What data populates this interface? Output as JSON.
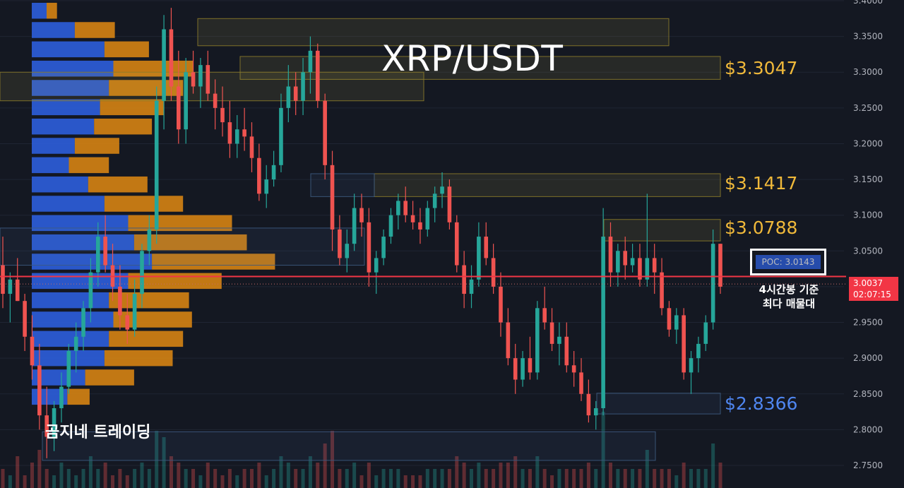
{
  "title": "XRP/USDT",
  "brand": "곰지네 트레이딩",
  "levels": {
    "l1": "$3.3047",
    "l2": "$3.1417",
    "l3": "$3.0788",
    "l4": "$2.8366"
  },
  "poc": {
    "label": "POC: 3.0143",
    "note_line1": "4시간봉 기준",
    "note_line2": "최다 매물대"
  },
  "price_tag": {
    "price": "3.0037",
    "countdown": "02:07:15"
  },
  "colors": {
    "background": "#141822",
    "up": "#26a69a",
    "down": "#ef5350",
    "gold": "#f0b93a",
    "blue": "#4f86f0",
    "profile_buy": "#2e63e6",
    "profile_sell": "#e08a12",
    "current_price_line": "#f23645"
  },
  "chart_data": {
    "type": "candlestick",
    "symbol": "XRP/USDT",
    "timeframe": "4h",
    "ylim": [
      2.73,
      3.4
    ],
    "y_ticks": [
      "3.4000",
      "3.3500",
      "3.3000",
      "3.2500",
      "3.2000",
      "3.1500",
      "3.1000",
      "3.0500",
      "3.0000",
      "2.9500",
      "2.9000",
      "2.8500",
      "2.8000",
      "2.7500"
    ],
    "current_price": 3.0037,
    "poc": 3.0143,
    "candles": [
      [
        3.03,
        3.07,
        2.97,
        2.99
      ],
      [
        2.99,
        3.02,
        2.95,
        3.01
      ],
      [
        3.01,
        3.04,
        2.98,
        2.98
      ],
      [
        2.98,
        2.99,
        2.91,
        2.93
      ],
      [
        2.93,
        2.96,
        2.87,
        2.89
      ],
      [
        2.89,
        2.92,
        2.8,
        2.82
      ],
      [
        2.82,
        2.86,
        2.76,
        2.79
      ],
      [
        2.79,
        2.84,
        2.77,
        2.83
      ],
      [
        2.83,
        2.88,
        2.81,
        2.86
      ],
      [
        2.86,
        2.92,
        2.85,
        2.91
      ],
      [
        2.91,
        2.95,
        2.88,
        2.93
      ],
      [
        2.93,
        2.98,
        2.91,
        2.97
      ],
      [
        2.97,
        3.04,
        2.95,
        3.02
      ],
      [
        3.02,
        3.09,
        3.0,
        3.07
      ],
      [
        3.07,
        3.1,
        3.02,
        3.03
      ],
      [
        3.03,
        3.06,
        2.98,
        3.0
      ],
      [
        3.0,
        3.03,
        2.94,
        2.96
      ],
      [
        2.96,
        2.99,
        2.92,
        2.94
      ],
      [
        2.94,
        3.01,
        2.93,
        2.99
      ],
      [
        2.99,
        3.06,
        2.97,
        3.05
      ],
      [
        3.05,
        3.1,
        3.03,
        3.08
      ],
      [
        3.08,
        3.28,
        3.06,
        3.26
      ],
      [
        3.26,
        3.38,
        3.22,
        3.36
      ],
      [
        3.36,
        3.39,
        3.26,
        3.28
      ],
      [
        3.28,
        3.33,
        3.2,
        3.22
      ],
      [
        3.22,
        3.32,
        3.2,
        3.3
      ],
      [
        3.3,
        3.33,
        3.27,
        3.28
      ],
      [
        3.28,
        3.32,
        3.25,
        3.31
      ],
      [
        3.31,
        3.33,
        3.26,
        3.27
      ],
      [
        3.27,
        3.29,
        3.22,
        3.25
      ],
      [
        3.25,
        3.28,
        3.21,
        3.23
      ],
      [
        3.23,
        3.26,
        3.18,
        3.2
      ],
      [
        3.2,
        3.24,
        3.18,
        3.22
      ],
      [
        3.22,
        3.25,
        3.19,
        3.21
      ],
      [
        3.21,
        3.23,
        3.16,
        3.18
      ],
      [
        3.18,
        3.2,
        3.12,
        3.13
      ],
      [
        3.13,
        3.17,
        3.11,
        3.15
      ],
      [
        3.15,
        3.19,
        3.14,
        3.17
      ],
      [
        3.17,
        3.27,
        3.16,
        3.25
      ],
      [
        3.25,
        3.31,
        3.23,
        3.28
      ],
      [
        3.28,
        3.3,
        3.24,
        3.26
      ],
      [
        3.26,
        3.32,
        3.24,
        3.3
      ],
      [
        3.3,
        3.35,
        3.27,
        3.33
      ],
      [
        3.33,
        3.34,
        3.25,
        3.26
      ],
      [
        3.26,
        3.27,
        3.15,
        3.17
      ],
      [
        3.17,
        3.19,
        3.05,
        3.08
      ],
      [
        3.08,
        3.1,
        3.03,
        3.04
      ],
      [
        3.04,
        3.08,
        3.02,
        3.06
      ],
      [
        3.06,
        3.13,
        3.05,
        3.11
      ],
      [
        3.11,
        3.13,
        3.07,
        3.09
      ],
      [
        3.09,
        3.11,
        3.0,
        3.02
      ],
      [
        3.02,
        3.05,
        2.99,
        3.04
      ],
      [
        3.04,
        3.08,
        3.03,
        3.07
      ],
      [
        3.07,
        3.11,
        3.06,
        3.1
      ],
      [
        3.1,
        3.13,
        3.08,
        3.12
      ],
      [
        3.12,
        3.14,
        3.09,
        3.1
      ],
      [
        3.1,
        3.12,
        3.08,
        3.09
      ],
      [
        3.09,
        3.11,
        3.06,
        3.08
      ],
      [
        3.08,
        3.12,
        3.07,
        3.11
      ],
      [
        3.11,
        3.14,
        3.09,
        3.13
      ],
      [
        3.13,
        3.16,
        3.11,
        3.14
      ],
      [
        3.14,
        3.15,
        3.08,
        3.09
      ],
      [
        3.09,
        3.1,
        3.02,
        3.03
      ],
      [
        3.03,
        3.05,
        2.97,
        2.99
      ],
      [
        2.99,
        3.03,
        2.97,
        3.01
      ],
      [
        3.01,
        3.09,
        3.0,
        3.07
      ],
      [
        3.07,
        3.09,
        3.03,
        3.04
      ],
      [
        3.04,
        3.06,
        2.99,
        3.0
      ],
      [
        3.0,
        3.02,
        2.93,
        2.95
      ],
      [
        2.95,
        2.97,
        2.89,
        2.9
      ],
      [
        2.9,
        2.92,
        2.85,
        2.87
      ],
      [
        2.87,
        2.91,
        2.86,
        2.9
      ],
      [
        2.9,
        2.93,
        2.87,
        2.88
      ],
      [
        2.88,
        2.98,
        2.87,
        2.97
      ],
      [
        2.97,
        3.0,
        2.94,
        2.95
      ],
      [
        2.95,
        2.97,
        2.91,
        2.92
      ],
      [
        2.92,
        2.95,
        2.89,
        2.93
      ],
      [
        2.93,
        2.95,
        2.88,
        2.89
      ],
      [
        2.89,
        2.91,
        2.86,
        2.88
      ],
      [
        2.88,
        2.9,
        2.84,
        2.85
      ],
      [
        2.85,
        2.87,
        2.81,
        2.82
      ],
      [
        2.82,
        2.84,
        2.8,
        2.83
      ],
      [
        2.83,
        3.11,
        2.82,
        3.07
      ],
      [
        3.07,
        3.09,
        3.0,
        3.02
      ],
      [
        3.02,
        3.06,
        3.0,
        3.05
      ],
      [
        3.05,
        3.07,
        3.01,
        3.03
      ],
      [
        3.03,
        3.06,
        3.02,
        3.04
      ],
      [
        3.04,
        3.06,
        3.0,
        3.01
      ],
      [
        3.01,
        3.13,
        3.0,
        3.04
      ],
      [
        3.04,
        3.06,
        2.99,
        3.02
      ],
      [
        3.02,
        3.04,
        2.96,
        2.97
      ],
      [
        2.97,
        2.98,
        2.93,
        2.94
      ],
      [
        2.94,
        2.97,
        2.92,
        2.96
      ],
      [
        2.96,
        2.97,
        2.87,
        2.88
      ],
      [
        2.88,
        2.91,
        2.85,
        2.9
      ],
      [
        2.9,
        2.93,
        2.88,
        2.92
      ],
      [
        2.92,
        2.96,
        2.91,
        2.95
      ],
      [
        2.95,
        3.08,
        2.94,
        3.06
      ],
      [
        3.06,
        3.06,
        2.99,
        3.0
      ]
    ],
    "volume_profile": [
      {
        "price": 3.385,
        "buy": 20,
        "sell": 14
      },
      {
        "price": 3.358,
        "buy": 58,
        "sell": 54
      },
      {
        "price": 3.331,
        "buy": 98,
        "sell": 60
      },
      {
        "price": 3.304,
        "buy": 110,
        "sell": 108
      },
      {
        "price": 3.277,
        "buy": 104,
        "sell": 100
      },
      {
        "price": 3.25,
        "buy": 92,
        "sell": 86
      },
      {
        "price": 3.223,
        "buy": 84,
        "sell": 78
      },
      {
        "price": 3.196,
        "buy": 58,
        "sell": 60
      },
      {
        "price": 3.169,
        "buy": 50,
        "sell": 54
      },
      {
        "price": 3.142,
        "buy": 76,
        "sell": 80
      },
      {
        "price": 3.115,
        "buy": 98,
        "sell": 106
      },
      {
        "price": 3.088,
        "buy": 130,
        "sell": 140
      },
      {
        "price": 3.061,
        "buy": 138,
        "sell": 152
      },
      {
        "price": 3.034,
        "buy": 162,
        "sell": 166
      },
      {
        "price": 3.007,
        "buy": 130,
        "sell": 126
      },
      {
        "price": 2.98,
        "buy": 104,
        "sell": 108
      },
      {
        "price": 2.953,
        "buy": 110,
        "sell": 106
      },
      {
        "price": 2.926,
        "buy": 104,
        "sell": 100
      },
      {
        "price": 2.899,
        "buy": 98,
        "sell": 92
      },
      {
        "price": 2.872,
        "buy": 72,
        "sell": 66
      },
      {
        "price": 2.845,
        "buy": 48,
        "sell": 30
      }
    ]
  }
}
